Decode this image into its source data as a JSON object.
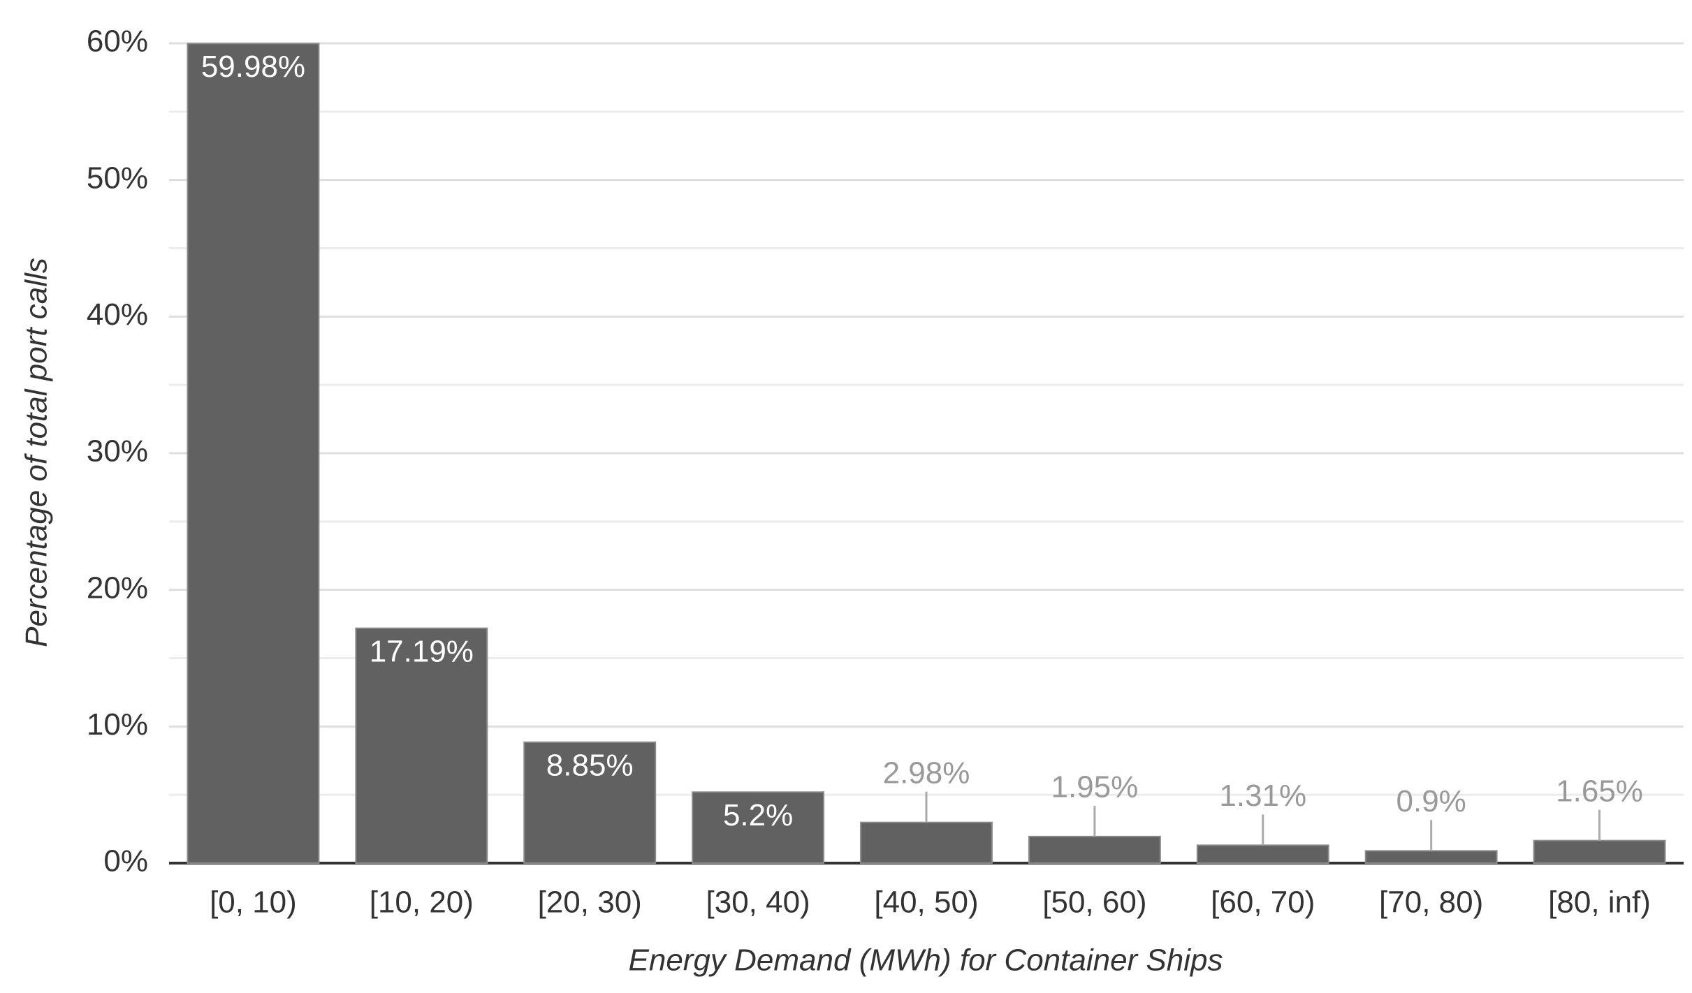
{
  "chart_data": {
    "type": "bar",
    "x_label": "Energy Demand (MWh) for Container Ships",
    "y_label": "Percentage of total port calls",
    "categories": [
      "[0, 10)",
      "[10, 20)",
      "[20, 30)",
      "[30, 40)",
      "[40, 50)",
      "[50, 60)",
      "[60, 70)",
      "[70, 80)",
      "[80, inf)"
    ],
    "values": [
      59.98,
      17.19,
      8.85,
      5.2,
      2.98,
      1.95,
      1.31,
      0.9,
      1.65
    ],
    "value_labels": [
      "59.98%",
      "17.19%",
      "8.85%",
      "5.2%",
      "2.98%",
      "1.95%",
      "1.31%",
      "0.9%",
      "1.65%"
    ],
    "color": "#616161",
    "ylim": [
      0,
      60
    ],
    "yticks": [
      {
        "value": 0,
        "label": "0%"
      },
      {
        "value": 10,
        "label": "10%"
      },
      {
        "value": 20,
        "label": "20%"
      },
      {
        "value": 30,
        "label": "30%"
      },
      {
        "value": 40,
        "label": "40%"
      },
      {
        "value": 50,
        "label": "50%"
      },
      {
        "value": 60,
        "label": "60%"
      }
    ],
    "minor_yticks": [
      5,
      15,
      25,
      35,
      45,
      55
    ],
    "grid": true
  }
}
